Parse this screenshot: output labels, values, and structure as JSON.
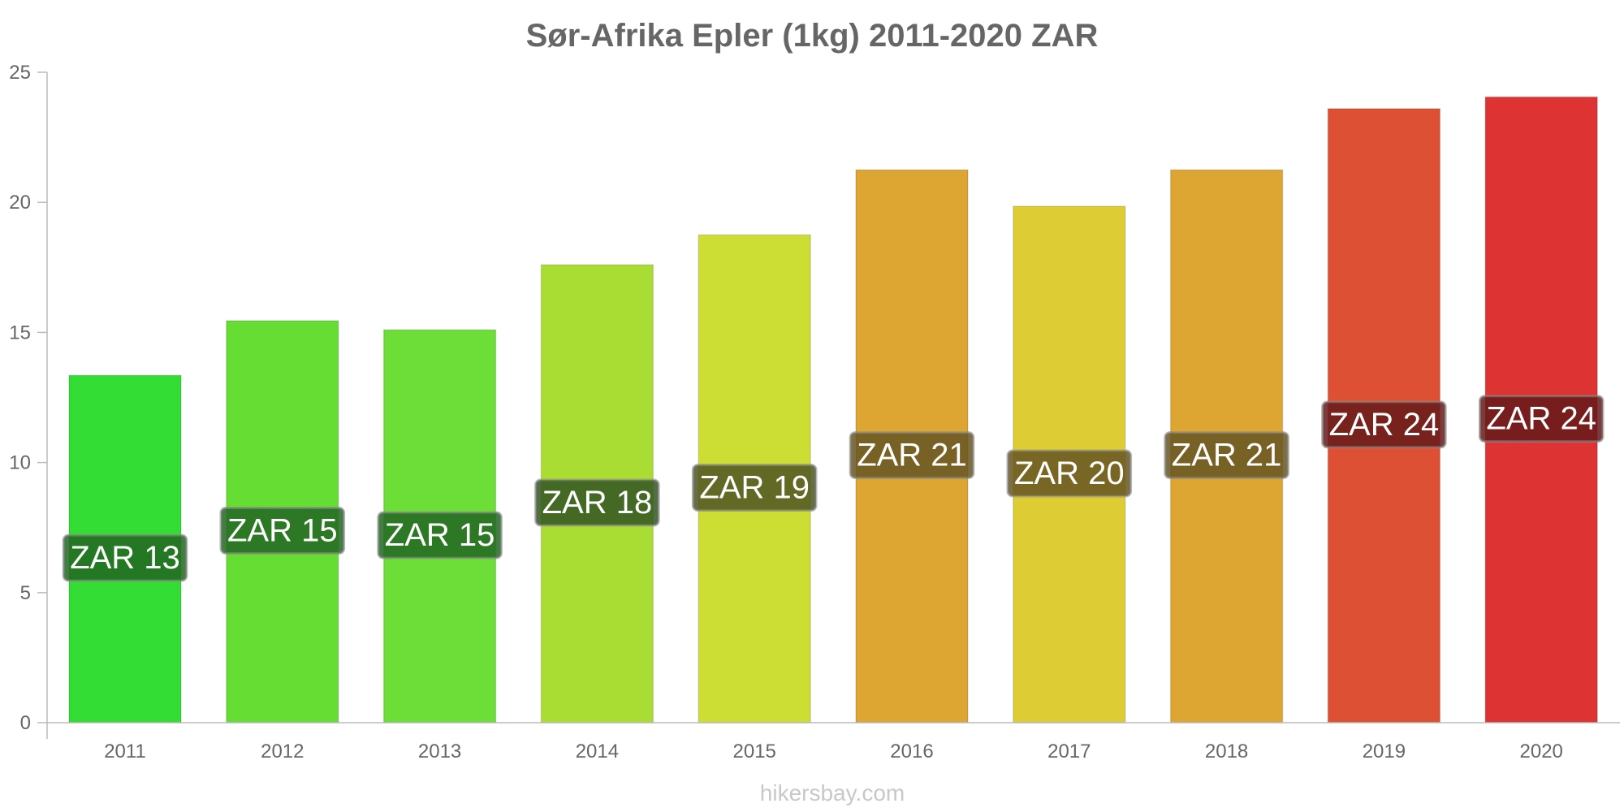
{
  "chart_data": {
    "type": "bar",
    "title": "Sør-Afrika Epler (1kg) 2011-2020 ZAR",
    "xlabel": "",
    "ylabel": "",
    "categories": [
      "2011",
      "2012",
      "2013",
      "2014",
      "2015",
      "2016",
      "2017",
      "2018",
      "2019",
      "2020"
    ],
    "values": [
      13.35,
      15.45,
      15.1,
      17.6,
      18.75,
      21.25,
      19.85,
      21.25,
      23.6,
      24.05
    ],
    "data_labels": [
      "ZAR 13",
      "ZAR 15",
      "ZAR 15",
      "ZAR 18",
      "ZAR 19",
      "ZAR 21",
      "ZAR 20",
      "ZAR 21",
      "ZAR 24",
      "ZAR 24"
    ],
    "colors": [
      "#33dd33",
      "#66dd33",
      "#6ddd37",
      "#aadd33",
      "#ccdd33",
      "#dda633",
      "#ddcc33",
      "#dda633",
      "#dd5033",
      "#dd3333"
    ],
    "label_bg": [
      "#226622",
      "#226622",
      "#226622",
      "#335522",
      "#4d5522",
      "#665522",
      "#665522",
      "#665522",
      "#661a1a",
      "#661a1a"
    ],
    "ylim": [
      0,
      25
    ],
    "yticks": [
      0,
      5,
      10,
      15,
      20,
      25
    ],
    "grid": false,
    "legend": "none"
  },
  "footer": {
    "watermark": "hikersbay.com"
  }
}
